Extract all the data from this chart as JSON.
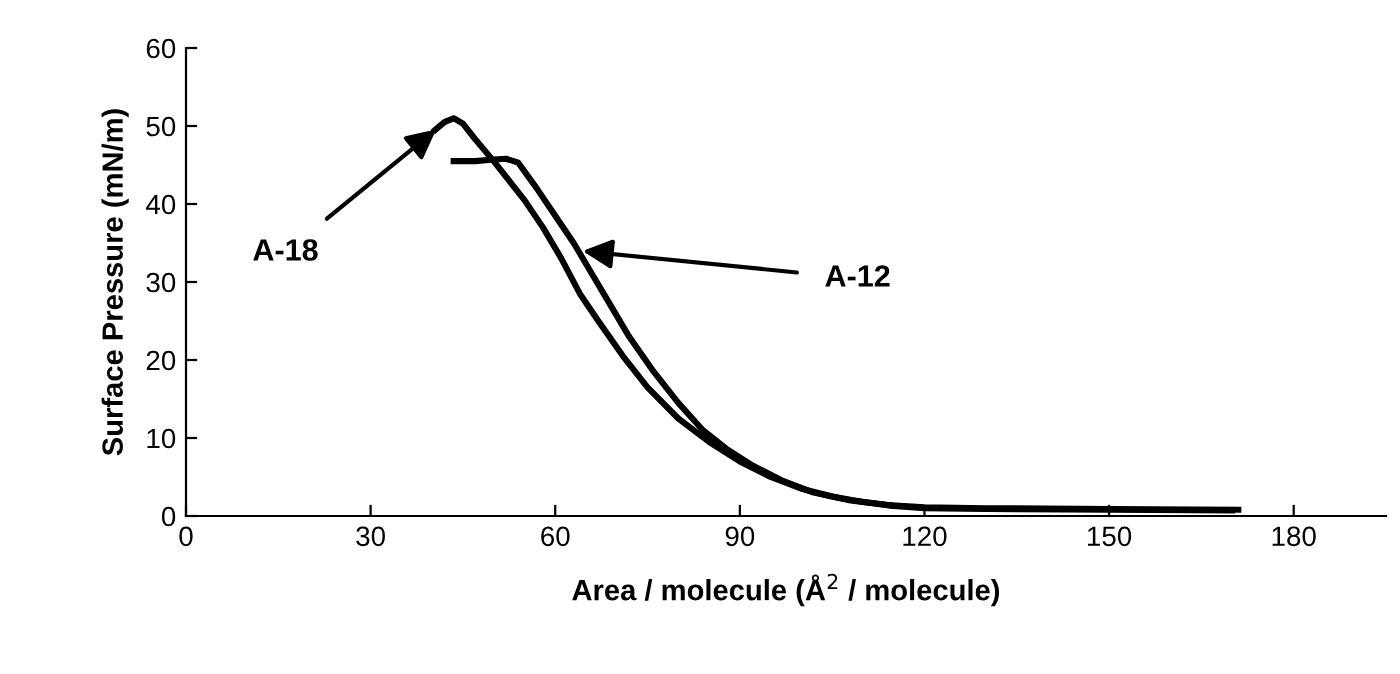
{
  "chart_data": {
    "type": "line",
    "xlabel": "Area / molecule (Å$^{2}$ / molecule)",
    "ylabel": "Surface Pressure (mN/m)",
    "xlim": [
      0,
      195
    ],
    "xticks": [
      0,
      30,
      60,
      90,
      120,
      150,
      180
    ],
    "ylim": [
      0,
      60
    ],
    "yticks": [
      0,
      10,
      20,
      30,
      40,
      50,
      60
    ],
    "grid": false,
    "legend": false,
    "marker": "none",
    "line_style": "solid",
    "series": [
      {
        "color": "#000000",
        "x": [
          40.5,
          42,
          43.5,
          45,
          47,
          50,
          55,
          58,
          61,
          64,
          67,
          71,
          75,
          80,
          85,
          90,
          95,
          100,
          105,
          110,
          115,
          120,
          130,
          150,
          170
        ],
        "values": [
          49.5,
          50.5,
          51,
          50.3,
          48.3,
          45.5,
          40.5,
          37,
          33,
          28.5,
          25,
          20.5,
          16.5,
          12.5,
          9.5,
          7,
          5,
          3.5,
          2.5,
          1.8,
          1.3,
          1,
          0.9,
          0.8,
          0.7
        ]
      },
      {
        "color": "#000000",
        "x": [
          43.5,
          47,
          50,
          52,
          54,
          57,
          60,
          63,
          66,
          69,
          72,
          76,
          80,
          84,
          88,
          92,
          97,
          102,
          108,
          114,
          120,
          130,
          150,
          171
        ],
        "values": [
          45.5,
          45.5,
          45.7,
          45.8,
          45.3,
          42,
          38.5,
          35,
          31,
          27,
          23,
          18.5,
          14.5,
          11,
          8.5,
          6.5,
          4.5,
          3,
          2,
          1.4,
          1.1,
          1,
          0.9,
          0.8
        ]
      }
    ],
    "annotations": [
      {
        "text": "A-18",
        "x": 41,
        "y": 49.8
      },
      {
        "text": "A-12",
        "x": 64,
        "y": 34
      }
    ]
  }
}
